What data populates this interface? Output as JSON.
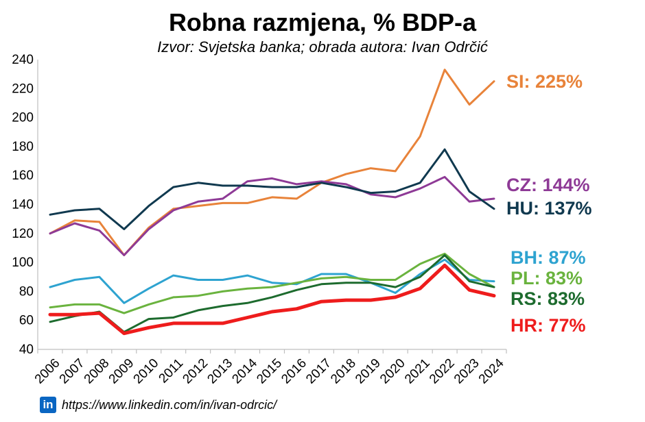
{
  "chart_data": {
    "type": "line",
    "title": "Robna razmjena, % BDP-a",
    "subtitle": "Izvor: Svjetska banka; obrada autora: Ivan Odrčić",
    "xlabel": "",
    "ylabel": "",
    "x": [
      "2006",
      "2007",
      "2008",
      "2009",
      "2010",
      "2011",
      "2012",
      "2013",
      "2014",
      "2015",
      "2016",
      "2017",
      "2018",
      "2019",
      "2020",
      "2021",
      "2022",
      "2023",
      "2024"
    ],
    "ylim": [
      40,
      240
    ],
    "yticks": [
      40,
      60,
      80,
      100,
      120,
      140,
      160,
      180,
      200,
      220,
      240
    ],
    "grid": false,
    "legend": "end-of-line labels",
    "series": [
      {
        "name": "SI",
        "label": "SI: 225%",
        "color": "#e8833a",
        "width": 3,
        "values": [
          120,
          129,
          128,
          105,
          124,
          137,
          139,
          141,
          141,
          145,
          144,
          155,
          161,
          165,
          163,
          187,
          233,
          209,
          225
        ]
      },
      {
        "name": "CZ",
        "label": "CZ: 144%",
        "color": "#8e3a96",
        "width": 3,
        "values": [
          120,
          127,
          122,
          105,
          123,
          136,
          142,
          144,
          156,
          158,
          154,
          156,
          154,
          147,
          145,
          151,
          159,
          142,
          144
        ]
      },
      {
        "name": "HU",
        "label": "HU: 137%",
        "color": "#10394f",
        "width": 3,
        "values": [
          133,
          136,
          137,
          123,
          139,
          152,
          155,
          153,
          153,
          152,
          152,
          155,
          152,
          148,
          149,
          155,
          178,
          149,
          137
        ]
      },
      {
        "name": "BH",
        "label": "BH: 87%",
        "color": "#2ea3d0",
        "width": 3,
        "values": [
          83,
          88,
          90,
          72,
          82,
          91,
          88,
          88,
          91,
          86,
          85,
          92,
          92,
          86,
          79,
          92,
          102,
          88,
          87
        ]
      },
      {
        "name": "PL",
        "label": "PL: 83%",
        "color": "#6ab33e",
        "width": 3,
        "values": [
          69,
          71,
          71,
          65,
          71,
          76,
          77,
          80,
          82,
          83,
          86,
          89,
          90,
          88,
          88,
          99,
          106,
          92,
          83
        ]
      },
      {
        "name": "RS",
        "label": "RS: 83%",
        "color": "#1d6b2e",
        "width": 3,
        "values": [
          59,
          63,
          66,
          52,
          61,
          62,
          67,
          70,
          72,
          76,
          81,
          85,
          86,
          86,
          83,
          90,
          105,
          87,
          83
        ]
      },
      {
        "name": "HR",
        "label": "HR: 77%",
        "color": "#ee1c1c",
        "width": 5,
        "values": [
          64,
          64,
          65,
          51,
          55,
          58,
          58,
          58,
          62,
          66,
          68,
          73,
          74,
          74,
          76,
          82,
          98,
          81,
          77
        ]
      }
    ]
  },
  "footer": {
    "icon": "linkedin-icon",
    "icon_text": "in",
    "url": "https://www.linkedin.com/in/ivan-odrcic/"
  }
}
